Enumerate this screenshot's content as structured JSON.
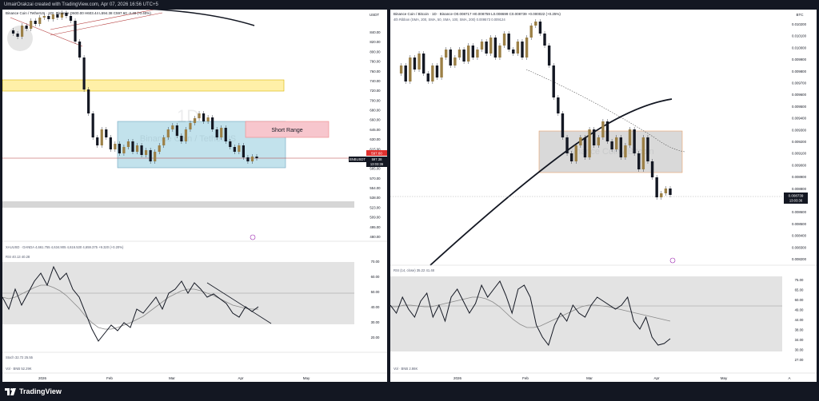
{
  "header": {
    "title": "UmairOrakzai created with TradingView.com, Apr 07, 2026 16:56 UTC+5"
  },
  "left_chart": {
    "symbol_line": "Binance Coin / TetherUS · 1D · Binance O600.00 H603.44 L594.38 C597.60 -2.40 (-0.40%)",
    "currency": "USDT",
    "price_ticks": [
      "840.00",
      "820.00",
      "800.00",
      "780.00",
      "760.00",
      "740.00",
      "720.00",
      "700.00",
      "680.00",
      "660.00",
      "645.00",
      "630.00",
      "615.00",
      "600.00",
      "585.00",
      "570.00",
      "554.00",
      "538.00",
      "523.00",
      "509.00",
      "495.00",
      "480.00"
    ],
    "price_tag": "597.60",
    "symbol_tag": "BNBUSDT",
    "price_tag2": "597.38",
    "countdown": "13:03:36",
    "short_range_label": "Short Range",
    "watermark_interval": "1D",
    "watermark_symbol": "Binance Coin / TetherUS",
    "xau_line": "XAUUSD · OANDA 4,661.755 4,634.905 4,616.530 4,659.375 +9.320 (+0.20%)",
    "rsi_line": "RSI 40.13 40.28",
    "rsi_ticks": [
      "70.00",
      "60.00",
      "50.00",
      "40.00",
      "30.00",
      "20.00"
    ],
    "stoch_line": "Stoch 32.72 25.55",
    "vol_line": "Vol · BNB 52.29K",
    "time_labels": [
      "2026",
      "Feb",
      "Mar",
      "Apr",
      "May"
    ]
  },
  "right_chart": {
    "symbol_line": "Binance Coin / Bitcoin · 1D · Binance O0.008717 H0.008759 L0.008699 C0.008739 +0.000022 (+0.25%)",
    "ma_line": "4th Ribbon (SMA, 200, SMA, 50, SMA, 100, SMA, 200) 0.009573 0.009124",
    "currency": "BTC",
    "price_ticks": [
      "0.010200",
      "0.010100",
      "0.010000",
      "0.009900",
      "0.009800",
      "0.009700",
      "0.009600",
      "0.009500",
      "0.009400",
      "0.009300",
      "0.009200",
      "0.009100",
      "0.009000",
      "0.008900",
      "0.008800",
      "0.008700",
      "0.008600",
      "0.008500",
      "0.008400",
      "0.008300",
      "0.008200"
    ],
    "price_tag": "0.008739",
    "countdown": "13:03:36",
    "watermark_symbol": "Binance Coin / Bitcoin",
    "rsi_line": "RSI (14, close) 35.22 41.48",
    "rsi_ticks": [
      "75.00",
      "65.00",
      "60.00",
      "49.00",
      "44.00",
      "38.00",
      "34.00",
      "30.00",
      "27.00"
    ],
    "vol_line": "Vol · BNB 2.86K",
    "time_labels": [
      "2026",
      "Feb",
      "Mar",
      "Apr",
      "May",
      "A"
    ]
  },
  "footer": {
    "brand": "TradingView"
  },
  "colors": {
    "bull": "#9c8046",
    "bear": "#131722",
    "box_blue": "#add8e6",
    "box_yellow": "#fff0a8",
    "box_pink": "#f7c6cd",
    "rsi_band": "#e3e3e3",
    "ema": "#131722",
    "price_tag_red": "#e0312f",
    "trendline": "#b33a3a"
  }
}
